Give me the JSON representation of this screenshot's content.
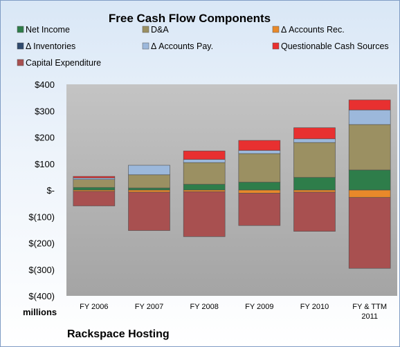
{
  "chart_data": {
    "type": "bar",
    "stacked": true,
    "title": "Free Cash Flow Components",
    "categories": [
      "FY 2006",
      "FY 2007",
      "FY 2008",
      "FY 2009",
      "FY 2010",
      "FY & TTM 2011"
    ],
    "y_tick_labels": [
      "$400",
      "$300",
      "$200",
      "$100",
      "$-",
      "$(100)",
      "$(200)",
      "$(300)",
      "$(400)"
    ],
    "ylim": [
      -400,
      400
    ],
    "ylabel": "",
    "y_unit_label": "millions",
    "caption": "Rackspace Hosting",
    "legend_position": "top",
    "series": [
      {
        "name": "Net Income",
        "color": "#2e7d4a",
        "values": [
          10,
          8,
          22,
          30,
          48,
          76
        ]
      },
      {
        "name": "D&A",
        "color": "#9b9062",
        "values": [
          30,
          50,
          82,
          108,
          132,
          172
        ]
      },
      {
        "name": "Δ Accounts Rec.",
        "color": "#e8892a",
        "values": [
          -5,
          -8,
          -6,
          -12,
          -8,
          -28
        ]
      },
      {
        "name": "Δ Inventories",
        "color": "#2f4a6e",
        "values": [
          0,
          0,
          0,
          0,
          0,
          0
        ]
      },
      {
        "name": "Δ Accounts Pay.",
        "color": "#9cb8db",
        "values": [
          6,
          36,
          12,
          12,
          14,
          55
        ]
      },
      {
        "name": "Questionable Cash Sources",
        "color": "#e83030",
        "values": [
          6,
          0,
          32,
          38,
          42,
          38
        ]
      },
      {
        "name": "Capital Expenditure",
        "color": "#a85050",
        "values": [
          -55,
          -145,
          -170,
          -122,
          -148,
          -268
        ]
      }
    ],
    "grid": false
  }
}
